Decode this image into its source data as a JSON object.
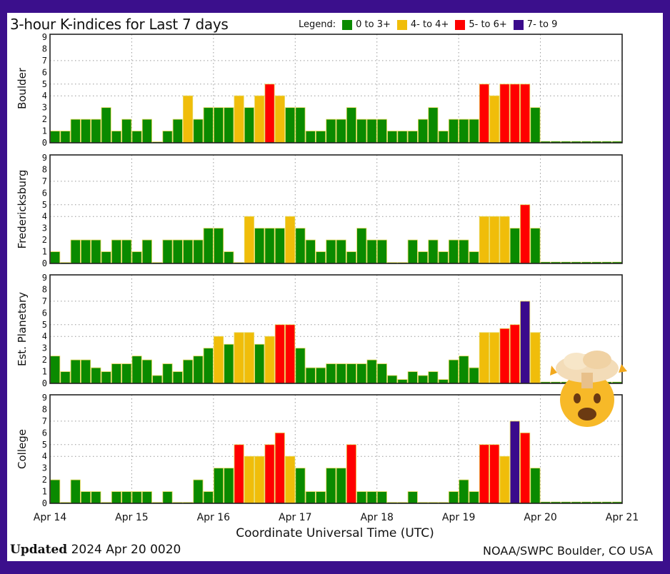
{
  "title": "3-hour K-indices for Last 7 days",
  "legend": {
    "label": "Legend:",
    "items": [
      {
        "label": "0 to 3+",
        "color": "#0a8a00"
      },
      {
        "label": "4- to 4+",
        "color": "#f0bd0a"
      },
      {
        "label": "5- to 6+",
        "color": "#ff0000"
      },
      {
        "label": "7- to 9",
        "color": "#3a0a8c"
      }
    ]
  },
  "footer": {
    "updated_label": "Updated",
    "updated_value": "2024 Apr 20 0020",
    "credit": "NOAA/SWPC Boulder, CO USA"
  },
  "chart_data": {
    "type": "bar",
    "title": "3-hour K-indices for Last 7 days",
    "xlabel": "Coordinate Universal Time (UTC)",
    "x_ticks": [
      "Apr 14",
      "Apr 15",
      "Apr 16",
      "Apr 17",
      "Apr 18",
      "Apr 19",
      "Apr 20",
      "Apr 21"
    ],
    "ylim": [
      0,
      9
    ],
    "y_ticks": [
      "0",
      "1",
      "2",
      "3",
      "4",
      "5",
      "6",
      "7",
      "8",
      "9"
    ],
    "bins_per_day": 8,
    "grid": true,
    "panels": [
      {
        "name": "Boulder",
        "values": [
          1,
          1,
          2,
          2,
          2,
          3,
          1,
          2,
          1,
          2,
          0,
          1,
          2,
          4,
          2,
          3,
          3,
          3,
          4,
          3,
          4,
          5,
          4,
          3,
          3,
          1,
          1,
          2,
          2,
          3,
          2,
          2,
          2,
          1,
          1,
          1,
          2,
          3,
          1,
          2,
          2,
          2,
          5,
          4,
          5,
          5,
          5,
          3
        ]
      },
      {
        "name": "Fredericksburg",
        "values": [
          1,
          0,
          2,
          2,
          2,
          1,
          2,
          2,
          1,
          2,
          0,
          2,
          2,
          2,
          2,
          3,
          3,
          1,
          0,
          4,
          3,
          3,
          3,
          4,
          3,
          2,
          1,
          2,
          2,
          1,
          3,
          2,
          2,
          0,
          0,
          2,
          1,
          2,
          1,
          2,
          2,
          1,
          4,
          4,
          4,
          3,
          5,
          3
        ]
      },
      {
        "name": "Est. Planetary",
        "values": [
          2.33,
          1,
          2,
          2,
          1.33,
          1,
          1.67,
          1.67,
          2.33,
          2,
          0.67,
          1.67,
          1,
          2,
          2.33,
          3,
          4,
          3.33,
          4.33,
          4.33,
          3.33,
          4,
          5,
          5,
          3,
          1.33,
          1.33,
          1.67,
          1.67,
          1.67,
          1.67,
          2,
          1.67,
          0.67,
          0.33,
          1,
          0.67,
          1,
          0.33,
          2,
          2.33,
          1.33,
          4.33,
          4.33,
          4.67,
          5,
          7,
          4.33
        ]
      },
      {
        "name": "College",
        "values": [
          2,
          0,
          2,
          1,
          1,
          0,
          1,
          1,
          1,
          1,
          0,
          1,
          0,
          0,
          2,
          1,
          3,
          3,
          5,
          4,
          4,
          5,
          6,
          4,
          3,
          1,
          1,
          3,
          3,
          5,
          1,
          1,
          1,
          0,
          0,
          1,
          0,
          0,
          0,
          1,
          2,
          1,
          5,
          5,
          4,
          7,
          6,
          3
        ]
      }
    ]
  }
}
